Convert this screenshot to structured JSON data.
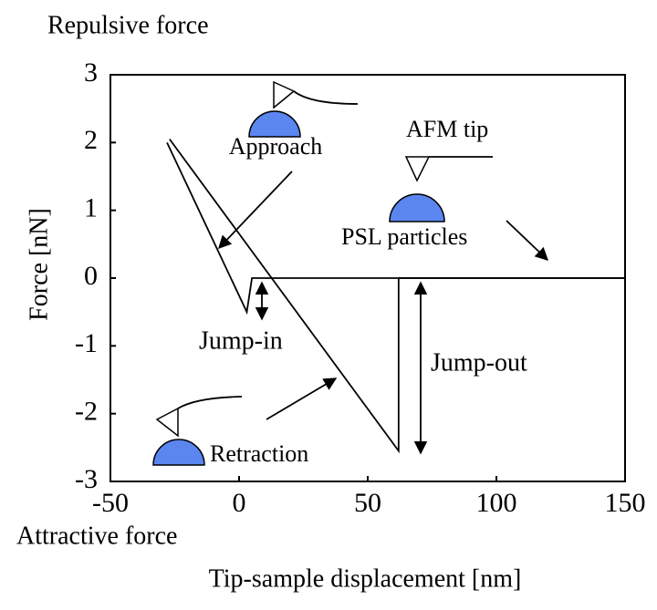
{
  "chart_data": {
    "type": "line",
    "x_label": "Tip-sample displacement [nm]",
    "y_label": "Force [nN]",
    "annotations": [
      "Repulsive force",
      "Attractive force",
      "Approach",
      "AFM tip",
      "PSL particles",
      "Jump-in",
      "Jump-out",
      "Retraction"
    ],
    "series": [
      {
        "color": "#000000",
        "x": [
          -28,
          3,
          4,
          5,
          150
        ],
        "values": [
          2.0,
          -0.5,
          -0.25,
          0,
          0
        ]
      },
      {
        "color": "#000000",
        "x": [
          150,
          62,
          62,
          -27
        ],
        "values": [
          0,
          0,
          -2.55,
          2.05
        ]
      }
    ],
    "xlim": [
      -50,
      150
    ],
    "ylim": [
      -3,
      3
    ],
    "xticks": [
      -50,
      0,
      50,
      100,
      150
    ],
    "yticks": [
      -3,
      -2,
      -1,
      0,
      1,
      2,
      3
    ]
  }
}
